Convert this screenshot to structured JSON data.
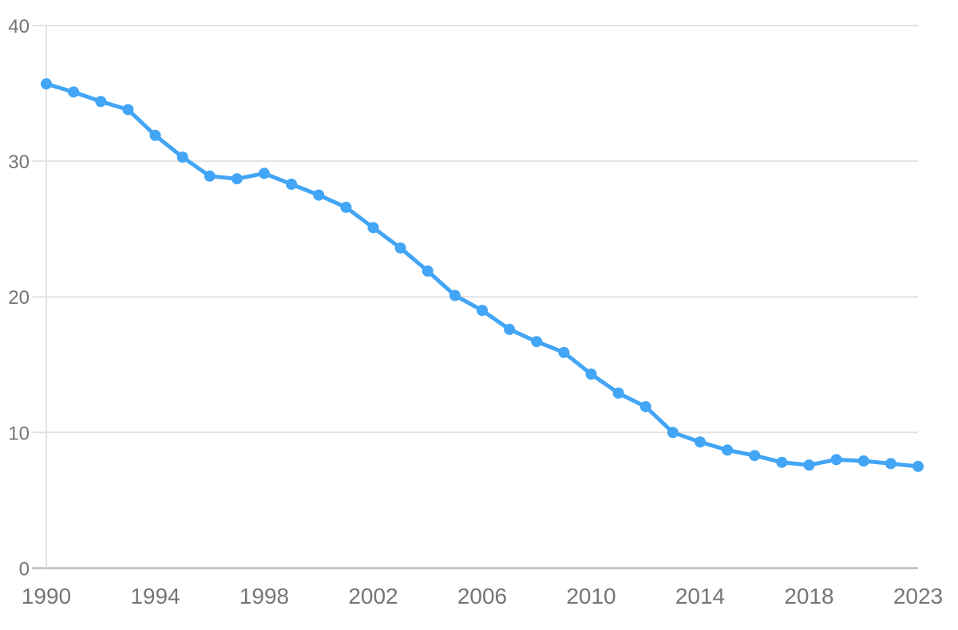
{
  "chart_data": {
    "type": "line",
    "title": "",
    "subtitle": "",
    "xlabel": "",
    "ylabel": "",
    "legend": "none",
    "grid": "horizontal gridlines on, single light vertical line at first category",
    "x": [
      "1990",
      "1991",
      "1992",
      "1993",
      "1994",
      "1995",
      "1996",
      "1997",
      "1998",
      "1999",
      "2000",
      "2001",
      "2002",
      "2003",
      "2004",
      "2005",
      "2006",
      "2007",
      "2008",
      "2009",
      "2010",
      "2011",
      "2012",
      "2013",
      "2014",
      "2015",
      "2016",
      "2017",
      "2018",
      "2019",
      "2021",
      "2022",
      "2023"
    ],
    "values": [
      35.7,
      35.1,
      34.4,
      33.8,
      31.9,
      30.3,
      28.9,
      28.7,
      29.1,
      28.3,
      27.5,
      26.6,
      25.1,
      23.6,
      21.9,
      20.1,
      19.0,
      17.6,
      16.7,
      15.9,
      14.3,
      12.9,
      11.9,
      10.0,
      9.3,
      8.7,
      8.3,
      7.8,
      7.6,
      8.0,
      7.9,
      7.7,
      7.5
    ],
    "x_tick_labels": [
      "1990",
      "1994",
      "1998",
      "2002",
      "2006",
      "2010",
      "2014",
      "2018",
      "2023"
    ],
    "x_tick_indices": [
      0,
      4,
      8,
      12,
      16,
      20,
      24,
      28,
      32
    ],
    "y_ticks": [
      0,
      10,
      20,
      30,
      40
    ],
    "ylim": [
      0,
      40
    ],
    "colors": {
      "line": "#42A5F5",
      "marker": "#42A5F5",
      "gridline": "#E2E2E2",
      "axis_baseline": "#B0B0B0",
      "axis_label": "#757575",
      "background": "#FFFFFF"
    }
  }
}
